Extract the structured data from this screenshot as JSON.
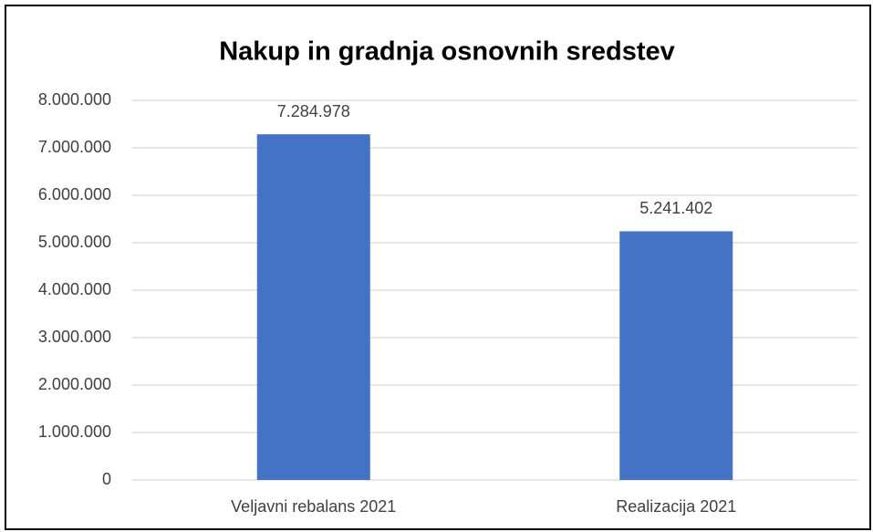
{
  "chart_data": {
    "type": "bar",
    "title": "Nakup in gradnja osnovnih sredstev",
    "categories": [
      "Veljavni rebalans 2021",
      "Realizacija 2021"
    ],
    "values": [
      7284978,
      5241402
    ],
    "value_labels": [
      "7.284.978",
      "5.241.402"
    ],
    "color": "#4472c4",
    "ylim": [
      0,
      8000000
    ],
    "yticks": [
      0,
      {
        "value": 1000000,
        "label": "1.000.000"
      },
      {
        "value": 2000000,
        "label": "2.000.000"
      },
      {
        "value": 3000000,
        "label": "3.000.000"
      },
      {
        "value": 4000000,
        "label": "4.000.000"
      },
      {
        "value": 5000000,
        "label": "5.000.000"
      },
      {
        "value": 6000000,
        "label": "6.000.000"
      },
      {
        "value": 7000000,
        "label": "7.000.000"
      },
      {
        "value": 8000000,
        "label": "8.000.000"
      }
    ],
    "grid": true
  }
}
